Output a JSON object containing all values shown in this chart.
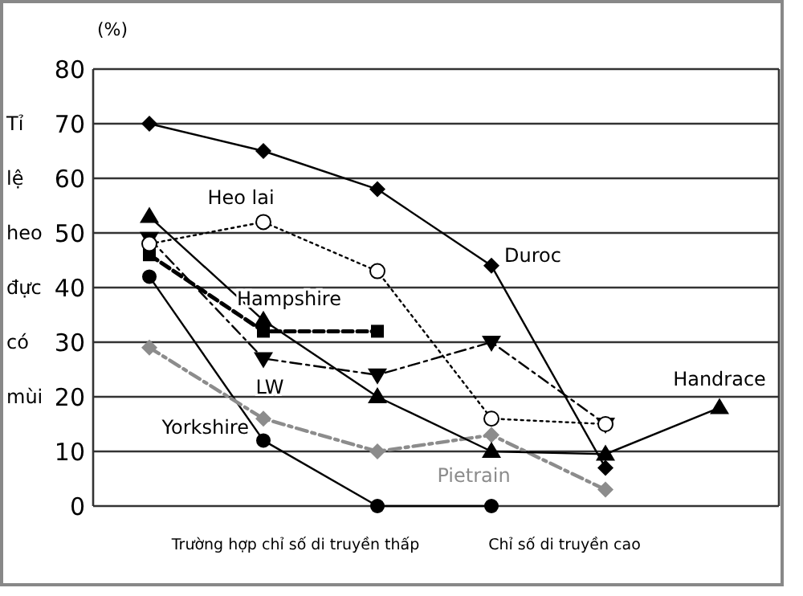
{
  "chart_data": {
    "type": "line",
    "ylabel": "Tỉ lệ heo đực có mùi",
    "annotations": [
      "(%)",
      "Trường hợp chỉ số di truyền thấp",
      "Chỉ số di truyền cao"
    ],
    "categories": [
      null,
      null,
      null,
      null,
      null,
      null
    ],
    "ylim": [
      0,
      80
    ],
    "yticks": [
      0,
      10,
      20,
      30,
      40,
      50,
      60,
      70,
      80
    ],
    "grid": "y",
    "series": [
      {
        "name": "Duroc",
        "color": "#000000",
        "marker": "diamond",
        "line_style": "solid",
        "values": [
          70,
          65,
          58,
          44,
          7,
          null
        ]
      },
      {
        "name": "Heo lai",
        "color": "#000000",
        "marker": "circle",
        "line_style": "dotted",
        "values": [
          48,
          52,
          43,
          16,
          15,
          null
        ]
      },
      {
        "name": "Hampshire",
        "color": "#000000",
        "marker": "square",
        "line_style": "dashed",
        "values": [
          46,
          32,
          32,
          null,
          null,
          null
        ]
      },
      {
        "name": "LW",
        "color": "#000000",
        "marker": "triangle-down",
        "line_style": "dashdot",
        "values": [
          49,
          27,
          24,
          30,
          15,
          null
        ]
      },
      {
        "name": "Yorkshire",
        "color": "#000000",
        "marker": "circle-filled",
        "line_style": "solid",
        "values": [
          42,
          12,
          0,
          0,
          null,
          null
        ]
      },
      {
        "name": "Pietrain",
        "color": "#8c8c8c",
        "marker": "diamond",
        "line_style": "dashdot",
        "values": [
          29,
          16,
          10,
          13,
          3,
          null
        ]
      },
      {
        "name": "Handrace",
        "color": "#000000",
        "marker": "triangle",
        "line_style": "solid",
        "values": [
          53,
          34,
          20,
          10,
          9.5,
          18
        ]
      }
    ]
  }
}
